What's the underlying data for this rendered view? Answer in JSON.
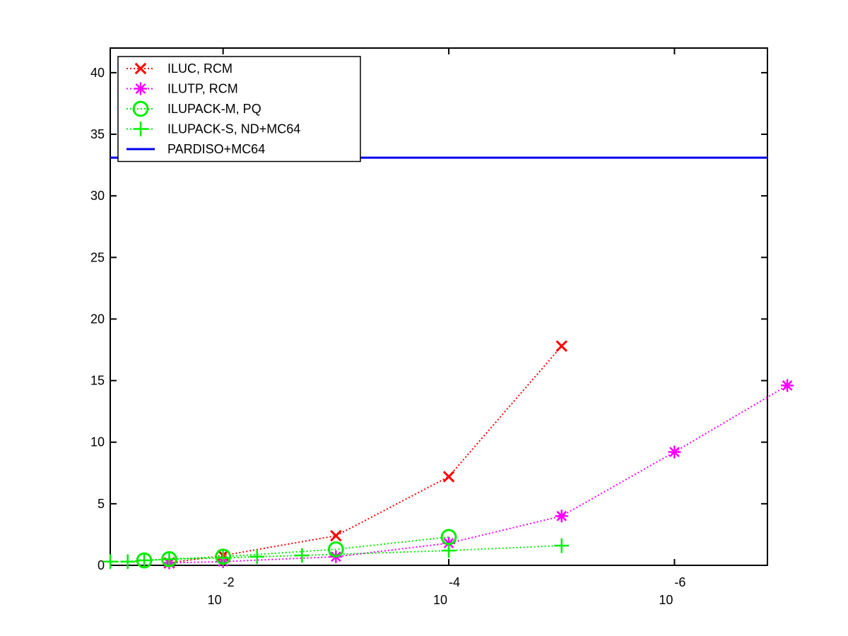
{
  "chart_data": {
    "type": "line",
    "title": "",
    "xlabel": "",
    "ylabel": "",
    "x_scale": "log-reversed",
    "xlim": [
      0.1,
      1.5e-07
    ],
    "ylim": [
      0,
      42
    ],
    "x_ticks": [
      {
        "value": 0.01,
        "base": "10",
        "exponent": "-2"
      },
      {
        "value": 0.0001,
        "base": "10",
        "exponent": "-4"
      },
      {
        "value": 1e-06,
        "base": "10",
        "exponent": "-6"
      }
    ],
    "y_ticks": [
      "0",
      "5",
      "10",
      "15",
      "20",
      "25",
      "30",
      "35",
      "40"
    ],
    "legend_position": "top-left",
    "series": [
      {
        "name": "ILUC, RCM",
        "color": "#ff0000",
        "marker": "x",
        "line_style": "dotted",
        "points": [
          {
            "x": 0.03,
            "y": 0.2
          },
          {
            "x": 0.01,
            "y": 0.8
          },
          {
            "x": 0.001,
            "y": 2.4
          },
          {
            "x": 0.0001,
            "y": 7.2
          },
          {
            "x": 1e-05,
            "y": 17.8
          }
        ]
      },
      {
        "name": "ILUTP, RCM",
        "color": "#ff00ff",
        "marker": "asterisk",
        "line_style": "dotted",
        "points": [
          {
            "x": 0.03,
            "y": 0.2
          },
          {
            "x": 0.01,
            "y": 0.3
          },
          {
            "x": 0.001,
            "y": 0.7
          },
          {
            "x": 0.0001,
            "y": 1.8
          },
          {
            "x": 1e-05,
            "y": 4.0
          },
          {
            "x": 1e-06,
            "y": 9.2
          },
          {
            "x": 1e-07,
            "y": 14.6
          }
        ]
      },
      {
        "name": "ILUPACK-M, PQ",
        "color": "#00ee00",
        "marker": "circle",
        "line_style": "dotted",
        "points": [
          {
            "x": 0.05,
            "y": 0.4
          },
          {
            "x": 0.03,
            "y": 0.5
          },
          {
            "x": 0.01,
            "y": 0.7
          },
          {
            "x": 0.001,
            "y": 1.3
          },
          {
            "x": 0.0001,
            "y": 2.3
          }
        ]
      },
      {
        "name": "ILUPACK-S, ND+MC64",
        "color": "#00ee00",
        "marker": "plus",
        "line_style": "dotted",
        "points": [
          {
            "x": 0.1,
            "y": 0.3
          },
          {
            "x": 0.07,
            "y": 0.3
          },
          {
            "x": 0.05,
            "y": 0.4
          },
          {
            "x": 0.03,
            "y": 0.5
          },
          {
            "x": 0.01,
            "y": 0.6
          },
          {
            "x": 0.005,
            "y": 0.7
          },
          {
            "x": 0.002,
            "y": 0.8
          },
          {
            "x": 0.0001,
            "y": 1.2
          },
          {
            "x": 1e-05,
            "y": 1.6
          }
        ]
      },
      {
        "name": "PARDISO+MC64",
        "color": "#0000ee",
        "marker": "none",
        "line_style": "solid",
        "points": [
          {
            "x": 0.1,
            "y": 33.1
          },
          {
            "x": 1.5e-07,
            "y": 33.1
          }
        ]
      }
    ]
  }
}
